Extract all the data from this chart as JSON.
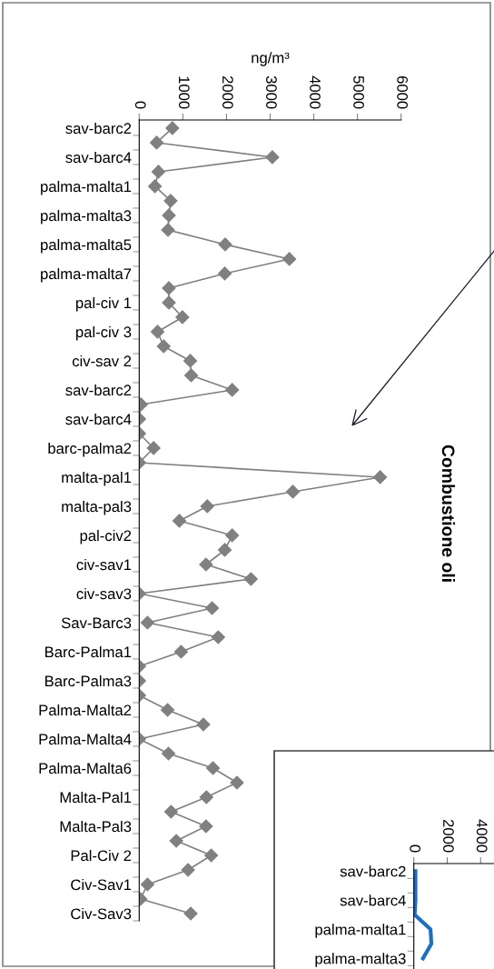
{
  "chart_data": [
    {
      "type": "line",
      "orientation": "horizontal",
      "xlabel": "ng/m³",
      "categories": [
        "sav-barc2",
        null,
        "sav-barc4",
        null,
        "palma-malta1",
        null,
        "palma-malta3",
        null,
        "palma-malta5",
        null,
        "palma-malta7",
        null,
        "pal-civ 1",
        null,
        "pal-civ 3",
        null,
        "civ-sav 2",
        null,
        "sav-barc2",
        null,
        "sav-barc4",
        null,
        "barc-palma2",
        null,
        "malta-pal1",
        null,
        "malta-pal3",
        null,
        "pal-civ2",
        null,
        "civ-sav1",
        null,
        "civ-sav3",
        null,
        "Sav-Barc3",
        null,
        "Barc-Palma1",
        null,
        "Barc-Palma3",
        null,
        "Palma-Malta2",
        null,
        "Palma-Malta4",
        null,
        "Palma-Malta6",
        null,
        "Malta-Pal1",
        null,
        "Malta-Pal3",
        null,
        "Pal-Civ 2",
        null,
        "Civ-Sav1",
        null,
        "Civ-Sav3"
      ],
      "series": [
        {
          "color": "#808080",
          "values": [
            760,
            400,
            3050,
            440,
            360,
            720,
            680,
            660,
            1970,
            3440,
            1960,
            680,
            680,
            990,
            420,
            560,
            1170,
            1190,
            2130,
            40,
            0,
            0,
            330,
            0,
            5520,
            3520,
            1560,
            920,
            2130,
            1960,
            1530,
            2560,
            0,
            1670,
            190,
            1810,
            960,
            0,
            0,
            0,
            650,
            1470,
            0,
            670,
            1690,
            2240,
            1540,
            730,
            1530,
            850,
            1650,
            1120,
            190,
            30,
            1180
          ]
        }
      ],
      "xlim": [
        0,
        6000
      ],
      "xticks": [
        0,
        1000,
        2000,
        3000,
        4000,
        5000,
        6000
      ],
      "marker": "diamond",
      "line_style": "solid",
      "grid": false,
      "legend": false,
      "annotations": [
        "Combustione oli"
      ]
    },
    {
      "type": "line",
      "orientation": "horizontal",
      "categories": [
        "sav-barc2",
        null,
        "sav-barc4",
        null,
        "palma-malta1",
        null,
        "palma-malta3"
      ],
      "series": [
        {
          "color": "#1f6fc0",
          "values": [
            100,
            100,
            100,
            50,
            1000,
            1050,
            550
          ]
        }
      ],
      "xlim": [
        0,
        4800
      ],
      "xticks": [
        0,
        2000,
        4000
      ],
      "marker": "none",
      "line_style": "solid",
      "grid": false,
      "legend": false
    }
  ]
}
